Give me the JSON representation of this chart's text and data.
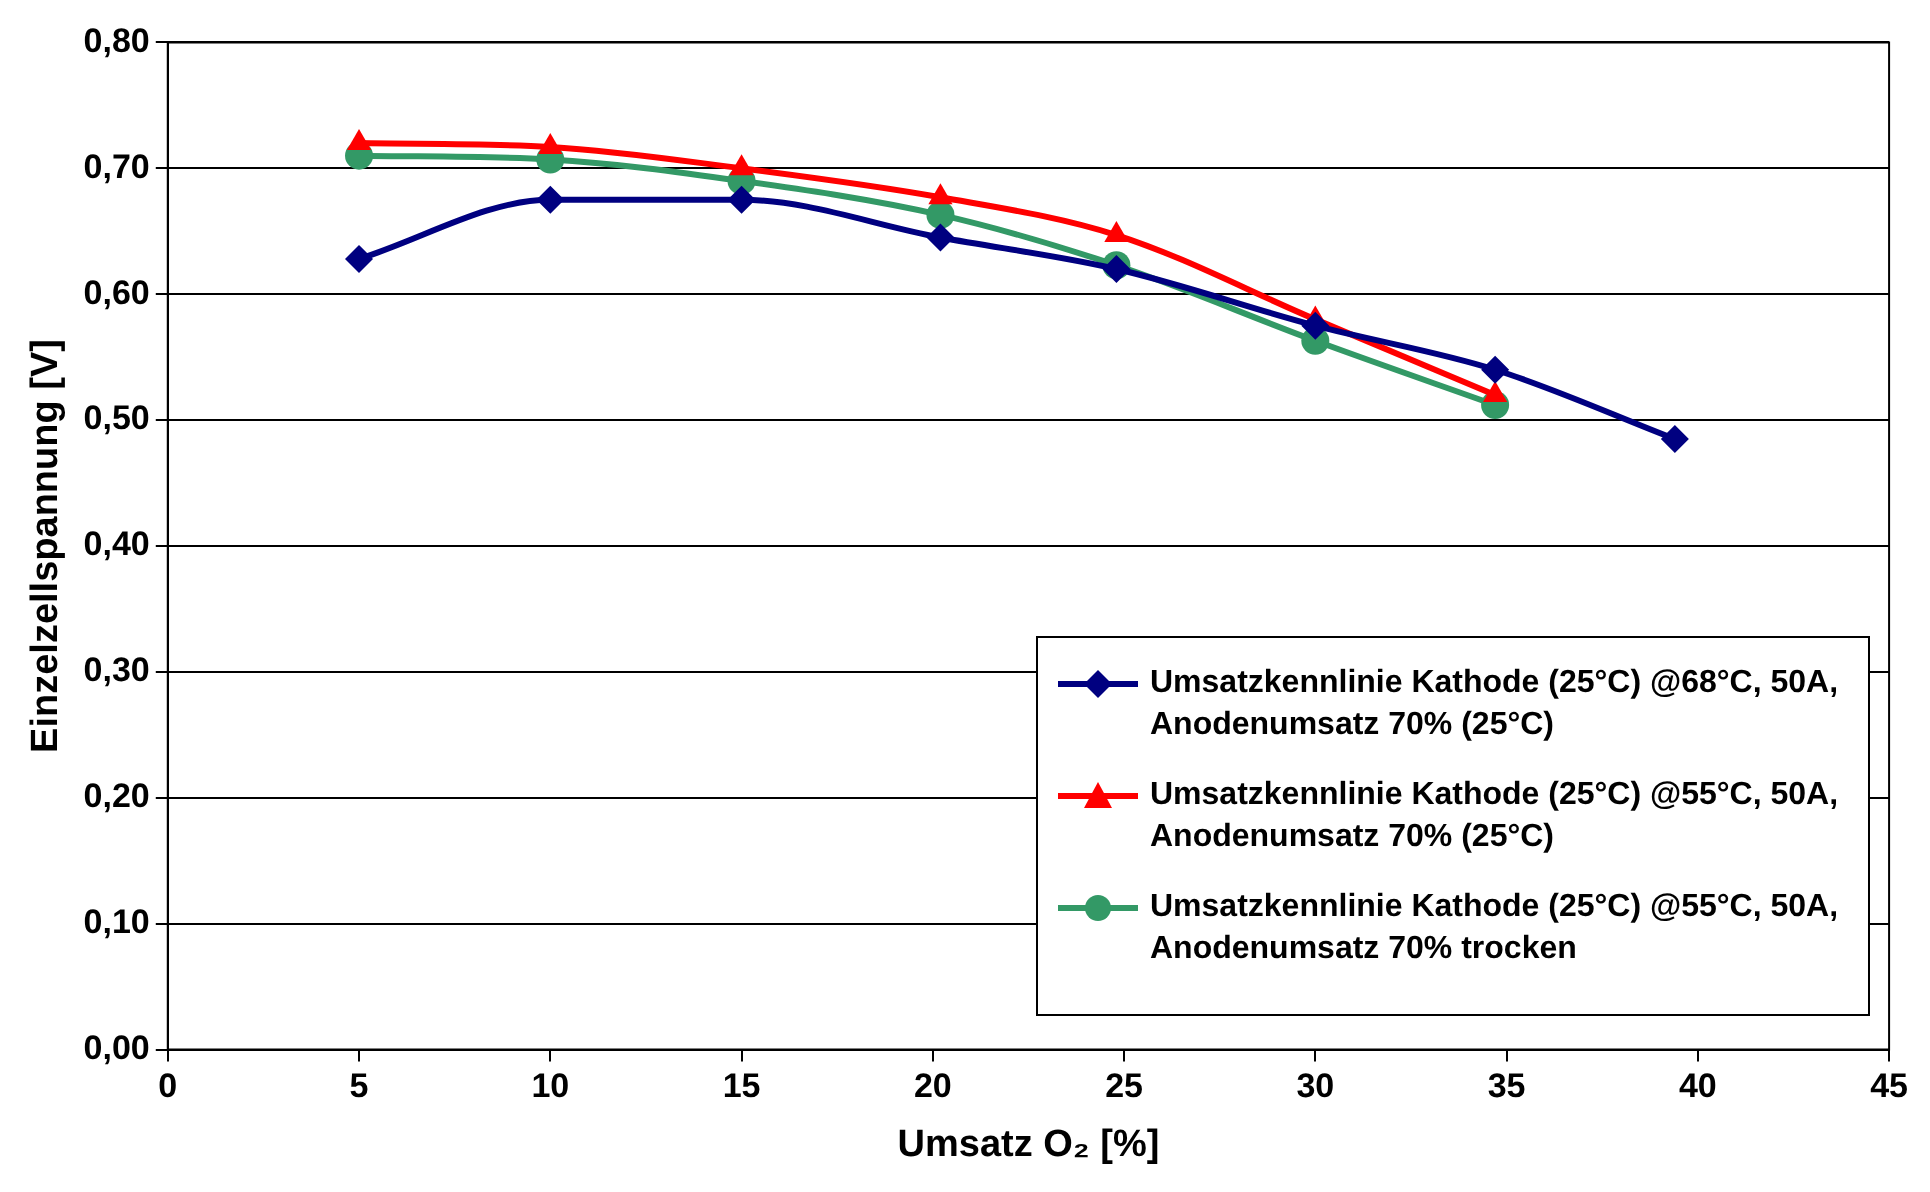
{
  "chart_data": {
    "type": "line",
    "xlabel": "Umsatz O₂ [%]",
    "ylabel": "Einzelzellspannung [V]",
    "xlim": [
      0,
      45
    ],
    "xticks": [
      0,
      5,
      10,
      15,
      20,
      25,
      30,
      35,
      40,
      45
    ],
    "ylim": [
      0,
      0.8
    ],
    "yticks": [
      {
        "value": 0,
        "label": "0,00"
      },
      {
        "value": 0.1,
        "label": "0,10"
      },
      {
        "value": 0.2,
        "label": "0,20"
      },
      {
        "value": 0.3,
        "label": "0,30"
      },
      {
        "value": 0.4,
        "label": "0,40"
      },
      {
        "value": 0.5,
        "label": "0,50"
      },
      {
        "value": 0.6,
        "label": "0,60"
      },
      {
        "value": 0.7,
        "label": "0,70"
      },
      {
        "value": 0.8,
        "label": "0,80"
      }
    ],
    "grid": "y",
    "legend": "bottom right",
    "line_style": "solid",
    "series": [
      {
        "name": "Umsatzkennlinie Kathode (25°C) @68°C, 50A, Anodenumsatz 70% (25°C)",
        "color": "#000080",
        "marker": "diamond",
        "x": [
          5,
          10,
          15,
          20.2,
          24.8,
          30,
          34.7,
          39.4
        ],
        "values": [
          0.628,
          0.675,
          0.675,
          0.645,
          0.62,
          0.575,
          0.54,
          0.485
        ]
      },
      {
        "name": "Umsatzkennlinie Kathode (25°C) @55°C, 50A, Anodenumsatz 70% (25°C)",
        "color": "#ff0000",
        "marker": "triangle",
        "x": [
          5,
          10,
          15,
          20.2,
          24.8,
          30,
          34.7
        ],
        "values": [
          0.72,
          0.717,
          0.7,
          0.677,
          0.647,
          0.58,
          0.52
        ]
      },
      {
        "name": "Umsatzkennlinie Kathode (25°C) @55°C, 50A, Anodenumsatz 70% trocken",
        "color": "#339966",
        "marker": "circle",
        "x": [
          5,
          10,
          15,
          20.2,
          24.8,
          30,
          34.7
        ],
        "values": [
          0.71,
          0.707,
          0.69,
          0.663,
          0.623,
          0.563,
          0.512
        ]
      }
    ]
  }
}
